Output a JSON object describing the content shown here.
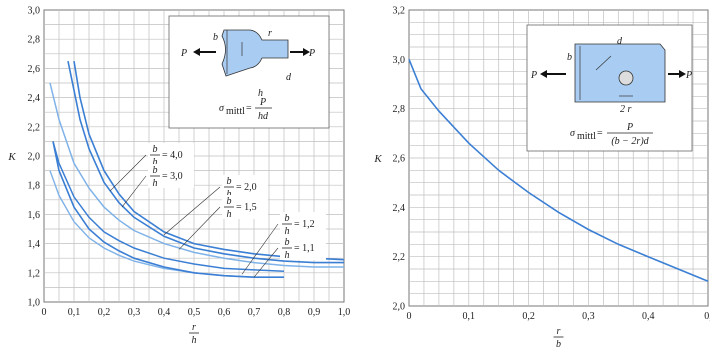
{
  "chart_data": [
    {
      "type": "line",
      "xlabel_num": "r",
      "xlabel_den": "h",
      "ylabel": "K",
      "xlim": [
        0,
        1.0
      ],
      "ylim": [
        1.0,
        3.0
      ],
      "x_ticks": [
        "0",
        "0,1",
        "0,2",
        "0,3",
        "0,4",
        "0,5",
        "0,6",
        "0,7",
        "0,8",
        "0,9",
        "1,0"
      ],
      "y_ticks": [
        "1,0",
        "1,2",
        "1,4",
        "1,6",
        "1,8",
        "2,0",
        "2,2",
        "2,4",
        "2,6",
        "2,8",
        "3,0"
      ],
      "grid": true,
      "series": [
        {
          "name_num": "b",
          "name_den": "h",
          "name_val": "= 4,0",
          "x": [
            0.1,
            0.12,
            0.15,
            0.2,
            0.25,
            0.3,
            0.4,
            0.5,
            0.6,
            0.7,
            0.8,
            0.9,
            1.0
          ],
          "y": [
            2.65,
            2.4,
            2.15,
            1.9,
            1.74,
            1.62,
            1.48,
            1.4,
            1.36,
            1.33,
            1.31,
            1.3,
            1.29
          ]
        },
        {
          "name_num": "b",
          "name_den": "h",
          "name_val": "= 3,0",
          "x": [
            0.08,
            0.1,
            0.12,
            0.15,
            0.2,
            0.25,
            0.3,
            0.4,
            0.5,
            0.6,
            0.7,
            0.8,
            0.9,
            1.0
          ],
          "y": [
            2.65,
            2.45,
            2.25,
            2.05,
            1.82,
            1.68,
            1.58,
            1.45,
            1.37,
            1.33,
            1.3,
            1.28,
            1.27,
            1.27
          ]
        },
        {
          "name_num": "b",
          "name_den": "h",
          "name_val": "= 2,0",
          "x": [
            0.02,
            0.05,
            0.1,
            0.15,
            0.2,
            0.25,
            0.3,
            0.4,
            0.5,
            0.6,
            0.7,
            0.8,
            0.9,
            1.0
          ],
          "y": [
            2.5,
            2.25,
            1.95,
            1.78,
            1.65,
            1.56,
            1.49,
            1.4,
            1.34,
            1.3,
            1.27,
            1.25,
            1.24,
            1.24
          ]
        },
        {
          "name_num": "b",
          "name_den": "h",
          "name_val": "= 1,5",
          "x": [
            0.03,
            0.05,
            0.1,
            0.15,
            0.2,
            0.25,
            0.3,
            0.4,
            0.5,
            0.6,
            0.7,
            0.8
          ],
          "y": [
            2.1,
            1.95,
            1.72,
            1.58,
            1.48,
            1.42,
            1.37,
            1.3,
            1.26,
            1.23,
            1.22,
            1.21
          ]
        },
        {
          "name_num": "b",
          "name_den": "h",
          "name_val": "= 1,2",
          "x": [
            0.02,
            0.05,
            0.1,
            0.15,
            0.2,
            0.25,
            0.3,
            0.4,
            0.5,
            0.6,
            0.7
          ],
          "y": [
            1.9,
            1.73,
            1.55,
            1.44,
            1.37,
            1.32,
            1.28,
            1.23,
            1.2,
            1.18,
            1.17
          ]
        },
        {
          "name_num": "b",
          "name_den": "h",
          "name_val": "= 1,1",
          "x": [
            0.03,
            0.05,
            0.1,
            0.15,
            0.2,
            0.25,
            0.3,
            0.4,
            0.5,
            0.6,
            0.7,
            0.8
          ],
          "y": [
            2.1,
            1.9,
            1.65,
            1.5,
            1.41,
            1.35,
            1.3,
            1.24,
            1.2,
            1.18,
            1.17,
            1.17
          ]
        }
      ],
      "inset": {
        "labels": [
          "P",
          "P",
          "b",
          "r",
          "h",
          "d"
        ],
        "formula_lhs": "σ",
        "formula_sub": "mittl",
        "formula_num": "P",
        "formula_den": "hd"
      }
    },
    {
      "type": "line",
      "xlabel_num": "r",
      "xlabel_den": "b",
      "ylabel": "K",
      "xlim": [
        0,
        0.5
      ],
      "ylim": [
        2.0,
        3.2
      ],
      "x_ticks": [
        "0",
        "0,1",
        "0,2",
        "0,3",
        "0,4",
        "0,"
      ],
      "y_ticks": [
        "2,0",
        "2,2",
        "2,4",
        "2,6",
        "2,8",
        "3,0",
        "3,2"
      ],
      "grid": true,
      "series": [
        {
          "x": [
            0,
            0.02,
            0.05,
            0.1,
            0.15,
            0.2,
            0.25,
            0.3,
            0.35,
            0.4,
            0.45,
            0.5
          ],
          "y": [
            3.0,
            2.88,
            2.79,
            2.66,
            2.55,
            2.46,
            2.38,
            2.31,
            2.25,
            2.2,
            2.15,
            2.1
          ]
        }
      ],
      "inset": {
        "labels": [
          "P",
          "P",
          "b",
          "d",
          "2 r"
        ],
        "formula_lhs": "σ",
        "formula_sub": "mittl",
        "formula_num": "P",
        "formula_den": "(b − 2r)d"
      }
    }
  ],
  "colors": {
    "curve": "#3b7fd4",
    "curve_light": "#7fb2e8",
    "grid": "#bfbfbf",
    "frame": "#777777",
    "inset_fill": "#a9cdf2"
  }
}
